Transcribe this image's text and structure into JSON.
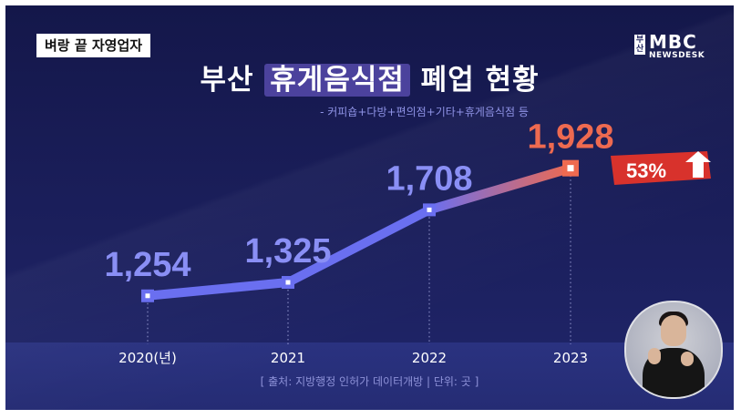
{
  "header_tag": "벼랑 끝 자영업자",
  "title": {
    "before": "부산 ",
    "highlight": "휴게음식점",
    "after": " 폐업 현황"
  },
  "subtitle": "- 커피숍+다방+편의점+기타+휴게음식점 등",
  "logo": {
    "city": "부산",
    "brand": "MBC",
    "sub": "NEWSDESK"
  },
  "source": "[ 출처: 지방행정 인허가 데이터개방 | 단위: 곳 ]",
  "chart_data": {
    "type": "line",
    "categories": [
      "2020(년)",
      "2021",
      "2022",
      "2023"
    ],
    "series": [
      {
        "values": [
          1254,
          1325,
          1708,
          1928
        ]
      }
    ],
    "data_labels": [
      "1,254",
      "1,325",
      "1,708",
      "1,928"
    ],
    "badge": {
      "text": "53%",
      "icon": "arrow-up-icon",
      "color": "#d8322c"
    },
    "colors": {
      "line": "#6a6ff0",
      "highlight": "#ee6a50",
      "label": "#8a8ff5",
      "tick": "#ffffff"
    },
    "grid": false
  },
  "interpreter": {
    "icon": "sign-language-interpreter"
  }
}
